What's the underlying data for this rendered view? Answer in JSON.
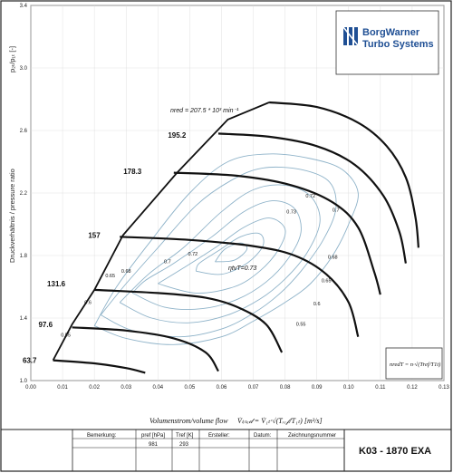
{
  "chart_data": {
    "type": "line",
    "ylabel": "Druckverhältnis / pressure ratio",
    "ytitle_top": "p₂ₜ/p₁ₜ [-]",
    "xlabel_prefix": "Volumenstrom/volume flow",
    "xlabel_formula": "V̇ₗᵢₙₑ𝒹 = V̇₁ₜ·√(Tᵣₑ𝒻/T₁ₜ) [m³/s]",
    "xlim": [
      0.0,
      0.13
    ],
    "ylim": [
      1.0,
      3.4
    ],
    "xticks": [
      "0.00",
      "0.01",
      "0.02",
      "0.03",
      "0.04",
      "0.05",
      "0.06",
      "0.07",
      "0.08",
      "0.09",
      "0.10",
      "0.11",
      "0.12",
      "0.13"
    ],
    "yticks": [
      "1.0",
      "1.4",
      "1.8",
      "2.2",
      "2.6",
      "3.0",
      "3.4"
    ],
    "surge_line": [
      [
        0.007,
        1.13
      ],
      [
        0.013,
        1.36
      ],
      [
        0.02,
        1.58
      ],
      [
        0.029,
        1.93
      ],
      [
        0.046,
        2.33
      ],
      [
        0.062,
        2.67
      ],
      [
        0.075,
        2.78
      ]
    ],
    "speed_lines": [
      {
        "name": "63.7",
        "points": [
          [
            0.007,
            1.13
          ],
          [
            0.02,
            1.11
          ],
          [
            0.03,
            1.08
          ],
          [
            0.036,
            1.05
          ]
        ]
      },
      {
        "name": "97.6",
        "points": [
          [
            0.013,
            1.34
          ],
          [
            0.03,
            1.32
          ],
          [
            0.045,
            1.27
          ],
          [
            0.055,
            1.18
          ],
          [
            0.059,
            1.06
          ]
        ]
      },
      {
        "name": "131.6",
        "points": [
          [
            0.02,
            1.58
          ],
          [
            0.04,
            1.56
          ],
          [
            0.055,
            1.53
          ],
          [
            0.065,
            1.47
          ],
          [
            0.074,
            1.36
          ],
          [
            0.079,
            1.18
          ]
        ]
      },
      {
        "name": "157",
        "points": [
          [
            0.028,
            1.92
          ],
          [
            0.05,
            1.9
          ],
          [
            0.07,
            1.86
          ],
          [
            0.083,
            1.8
          ],
          [
            0.093,
            1.68
          ],
          [
            0.1,
            1.5
          ],
          [
            0.103,
            1.28
          ]
        ]
      },
      {
        "name": "178.3",
        "points": [
          [
            0.045,
            2.33
          ],
          [
            0.065,
            2.31
          ],
          [
            0.082,
            2.25
          ],
          [
            0.095,
            2.14
          ],
          [
            0.103,
            1.98
          ],
          [
            0.108,
            1.7
          ],
          [
            0.11,
            1.55
          ]
        ]
      },
      {
        "name": "195.2",
        "points": [
          [
            0.059,
            2.58
          ],
          [
            0.075,
            2.56
          ],
          [
            0.09,
            2.5
          ],
          [
            0.102,
            2.38
          ],
          [
            0.111,
            2.18
          ],
          [
            0.116,
            1.95
          ],
          [
            0.118,
            1.75
          ]
        ]
      },
      {
        "name": "207.5",
        "points": [
          [
            0.075,
            2.78
          ],
          [
            0.09,
            2.75
          ],
          [
            0.103,
            2.65
          ],
          [
            0.112,
            2.5
          ],
          [
            0.118,
            2.3
          ],
          [
            0.121,
            2.05
          ],
          [
            0.122,
            1.85
          ]
        ]
      }
    ],
    "speed_label_pos": [
      [
        0.003,
        1.13
      ],
      [
        0.008,
        1.36
      ],
      [
        0.012,
        1.62
      ],
      [
        0.023,
        1.93
      ],
      [
        0.036,
        2.34
      ],
      [
        0.05,
        2.57
      ]
    ],
    "efficiency_islands": [
      {
        "name": "0.55",
        "points": [
          [
            0.02,
            1.35
          ],
          [
            0.03,
            1.27
          ],
          [
            0.045,
            1.23
          ],
          [
            0.06,
            1.28
          ],
          [
            0.07,
            1.38
          ],
          [
            0.08,
            1.5
          ],
          [
            0.088,
            1.62
          ],
          [
            0.095,
            1.8
          ],
          [
            0.1,
            2.0
          ],
          [
            0.103,
            2.2
          ],
          [
            0.098,
            2.35
          ],
          [
            0.088,
            2.42
          ],
          [
            0.075,
            2.45
          ],
          [
            0.062,
            2.4
          ],
          [
            0.05,
            2.2
          ],
          [
            0.038,
            1.9
          ],
          [
            0.027,
            1.6
          ],
          [
            0.02,
            1.35
          ]
        ]
      },
      {
        "name": "0.6",
        "points": [
          [
            0.022,
            1.42
          ],
          [
            0.032,
            1.32
          ],
          [
            0.047,
            1.28
          ],
          [
            0.06,
            1.33
          ],
          [
            0.07,
            1.43
          ],
          [
            0.078,
            1.55
          ],
          [
            0.085,
            1.7
          ],
          [
            0.092,
            1.9
          ],
          [
            0.096,
            2.1
          ],
          [
            0.094,
            2.27
          ],
          [
            0.085,
            2.35
          ],
          [
            0.073,
            2.36
          ],
          [
            0.063,
            2.28
          ],
          [
            0.052,
            2.12
          ],
          [
            0.04,
            1.85
          ],
          [
            0.03,
            1.62
          ],
          [
            0.022,
            1.42
          ]
        ]
      },
      {
        "name": "0.65",
        "points": [
          [
            0.028,
            1.5
          ],
          [
            0.038,
            1.4
          ],
          [
            0.05,
            1.37
          ],
          [
            0.062,
            1.42
          ],
          [
            0.072,
            1.52
          ],
          [
            0.08,
            1.65
          ],
          [
            0.087,
            1.82
          ],
          [
            0.091,
            2.02
          ],
          [
            0.088,
            2.18
          ],
          [
            0.08,
            2.25
          ],
          [
            0.07,
            2.22
          ],
          [
            0.06,
            2.08
          ],
          [
            0.048,
            1.85
          ],
          [
            0.037,
            1.68
          ],
          [
            0.028,
            1.5
          ]
        ]
      },
      {
        "name": "0.68",
        "points": [
          [
            0.032,
            1.56
          ],
          [
            0.042,
            1.47
          ],
          [
            0.054,
            1.46
          ],
          [
            0.065,
            1.52
          ],
          [
            0.074,
            1.63
          ],
          [
            0.081,
            1.78
          ],
          [
            0.085,
            1.95
          ],
          [
            0.083,
            2.1
          ],
          [
            0.076,
            2.15
          ],
          [
            0.067,
            2.08
          ],
          [
            0.057,
            1.92
          ],
          [
            0.045,
            1.75
          ],
          [
            0.036,
            1.64
          ],
          [
            0.032,
            1.56
          ]
        ]
      },
      {
        "name": "0.7",
        "points": [
          [
            0.04,
            1.62
          ],
          [
            0.052,
            1.56
          ],
          [
            0.064,
            1.6
          ],
          [
            0.072,
            1.7
          ],
          [
            0.078,
            1.84
          ],
          [
            0.08,
            1.97
          ],
          [
            0.075,
            2.04
          ],
          [
            0.067,
            1.98
          ],
          [
            0.058,
            1.85
          ],
          [
            0.048,
            1.72
          ],
          [
            0.04,
            1.62
          ]
        ]
      },
      {
        "name": "0.72",
        "points": [
          [
            0.052,
            1.7
          ],
          [
            0.06,
            1.68
          ],
          [
            0.068,
            1.75
          ],
          [
            0.073,
            1.86
          ],
          [
            0.072,
            1.94
          ],
          [
            0.066,
            1.92
          ],
          [
            0.059,
            1.83
          ],
          [
            0.053,
            1.75
          ],
          [
            0.052,
            1.7
          ]
        ]
      },
      {
        "name": "0.73",
        "points": [
          [
            0.058,
            1.76
          ],
          [
            0.064,
            1.77
          ],
          [
            0.068,
            1.84
          ],
          [
            0.066,
            1.88
          ],
          [
            0.061,
            1.84
          ],
          [
            0.058,
            1.76
          ]
        ]
      }
    ],
    "efficiency_labels": [
      {
        "text": "0.55",
        "x": 0.011,
        "y": 1.28
      },
      {
        "text": "0.6",
        "x": 0.018,
        "y": 1.49
      },
      {
        "text": "0.65",
        "x": 0.025,
        "y": 1.66
      },
      {
        "text": "0.68",
        "x": 0.03,
        "y": 1.69
      },
      {
        "text": "0.7",
        "x": 0.043,
        "y": 1.75
      },
      {
        "text": "0.72",
        "x": 0.051,
        "y": 1.8
      },
      {
        "text": "0.72",
        "x": 0.088,
        "y": 2.17
      },
      {
        "text": "0.73",
        "x": 0.082,
        "y": 2.07
      },
      {
        "text": "0.7",
        "x": 0.096,
        "y": 2.08
      },
      {
        "text": "0.68",
        "x": 0.095,
        "y": 1.78
      },
      {
        "text": "0.65",
        "x": 0.093,
        "y": 1.63
      },
      {
        "text": "0.6",
        "x": 0.09,
        "y": 1.48
      },
      {
        "text": "0.55",
        "x": 0.085,
        "y": 1.35
      }
    ],
    "eta_label": "ηtvT=0.73",
    "speed_annotation": "nred = 207.5 * 10³ min⁻¹",
    "grid": true
  },
  "logo": {
    "line1": "BorgWarner",
    "line2": "Turbo Systems",
    "color": "#1f4f94"
  },
  "formula_box": "nredT = n·√(Tref/T1t)",
  "title_block": {
    "remark_label": "Bemerkung:",
    "pref_label": "pref [hPa]",
    "pref_value": "981",
    "tref_label": "Tref [K]",
    "tref_value": "293",
    "creator_label": "Ersteller:",
    "date_label": "Datum:",
    "drawing_label": "Zeichnungsnummer",
    "drawing_number": "K03 - 1870 EXA"
  },
  "colors": {
    "line": "#111111",
    "contour": "#8fb3c9",
    "grid": "#d9d9d9",
    "brand": "#1f4f94"
  }
}
